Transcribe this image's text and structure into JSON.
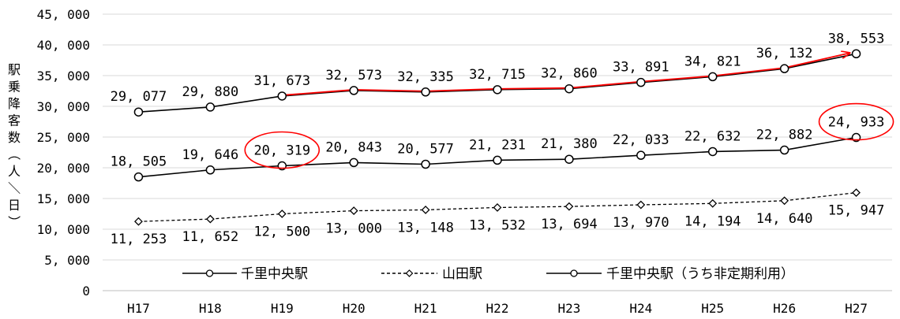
{
  "chart_data": {
    "type": "line",
    "categories": [
      "H17",
      "H18",
      "H19",
      "H20",
      "H21",
      "H22",
      "H23",
      "H24",
      "H25",
      "H26",
      "H27"
    ],
    "series": [
      {
        "name": "千里中央駅",
        "values": [
          29077,
          29880,
          31673,
          32573,
          32335,
          32715,
          32860,
          33891,
          34821,
          36132,
          38553
        ],
        "marker": "circle",
        "dash": "solid"
      },
      {
        "name": "山田駅",
        "values": [
          11253,
          11652,
          12500,
          13000,
          13148,
          13532,
          13694,
          13970,
          14194,
          14640,
          15947
        ],
        "marker": "diamond",
        "dash": "dashed"
      },
      {
        "name": "千里中央駅（うち非定期利用）",
        "values": [
          18505,
          19646,
          20319,
          20843,
          20577,
          21231,
          21380,
          22033,
          22632,
          22882,
          24933
        ],
        "marker": "circle",
        "dash": "solid"
      }
    ],
    "value_labels": [
      [
        "29, 077",
        "29, 880",
        "31, 673",
        "32, 573",
        "32, 335",
        "32, 715",
        "32, 860",
        "33, 891",
        "34, 821",
        "36, 132",
        "38, 553"
      ],
      [
        "11, 253",
        "11, 652",
        "12, 500",
        "13, 000",
        "13, 148",
        "13, 532",
        "13, 694",
        "13, 970",
        "14, 194",
        "14, 640",
        "15, 947"
      ],
      [
        "18, 505",
        "19, 646",
        "20, 319",
        "20, 843",
        "20, 577",
        "21, 231",
        "21, 380",
        "22, 033",
        "22, 632",
        "22, 882",
        "24, 933"
      ]
    ],
    "y_ticks": [
      0,
      5000,
      10000,
      15000,
      20000,
      25000,
      30000,
      35000,
      40000,
      45000
    ],
    "y_tick_labels": [
      "0",
      "5, 000",
      "10, 000",
      "15, 000",
      "20, 000",
      "25, 000",
      "30, 000",
      "35, 000",
      "40, 000",
      "45, 000"
    ],
    "ylim": [
      0,
      45000
    ],
    "ylabel": "駅乗降客数（人／日）",
    "xlabel": "",
    "title": "",
    "grid": "horizontal",
    "legend_position": "bottom",
    "highlight": {
      "series_index": 0,
      "from_index": 2,
      "to_index": 10,
      "color": "#ff0000",
      "arrow": true
    },
    "circled_labels": [
      {
        "series_index": 2,
        "point_index": 2
      },
      {
        "series_index": 2,
        "point_index": 10
      }
    ],
    "colors": {
      "line": "#000000",
      "grid": "#d9d9d9",
      "highlight": "#ff0000"
    }
  }
}
